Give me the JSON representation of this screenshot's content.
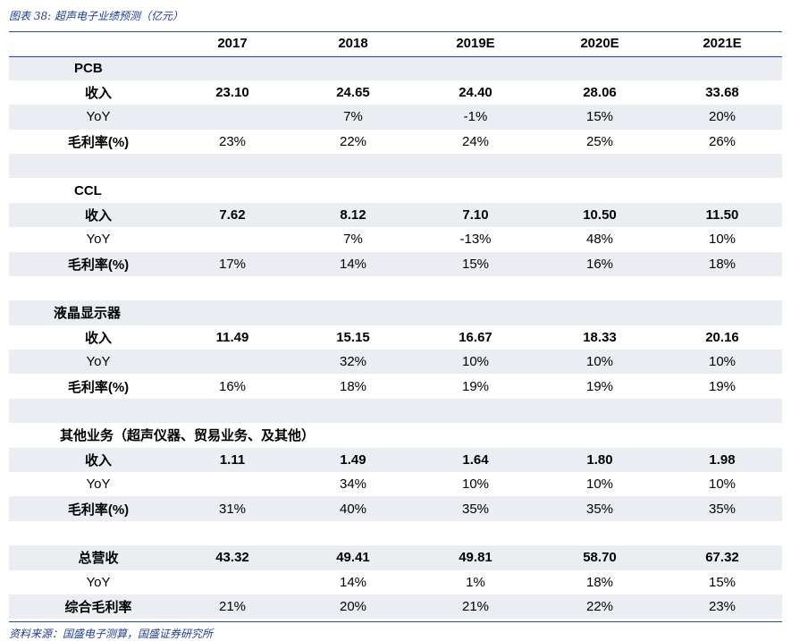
{
  "caption": "图表 38:  超声电子业绩预测（亿元）",
  "source": "资料来源：国盛电子测算，国盛证券研究所",
  "header": [
    "2017",
    "2018",
    "2019E",
    "2020E",
    "2021E"
  ],
  "rows": [
    {
      "type": "section",
      "label": "PCB",
      "shaded": true,
      "indent": 73
    },
    {
      "type": "data",
      "label": "收入",
      "bold": true,
      "values": [
        "23.10",
        "24.65",
        "24.40",
        "28.06",
        "33.68"
      ],
      "shaded": false
    },
    {
      "type": "data",
      "label": "YoY",
      "bold": false,
      "values": [
        "",
        "7%",
        "-1%",
        "15%",
        "20%"
      ],
      "shaded": true
    },
    {
      "type": "data",
      "label": "毛利率(%)",
      "label_bold": true,
      "bold": false,
      "values": [
        "23%",
        "22%",
        "24%",
        "25%",
        "26%"
      ],
      "shaded": false
    },
    {
      "type": "blank",
      "shaded": true
    },
    {
      "type": "section",
      "label": "CCL",
      "shaded": false,
      "indent": 73
    },
    {
      "type": "data",
      "label": "收入",
      "bold": true,
      "values": [
        "7.62",
        "8.12",
        "7.10",
        "10.50",
        "11.50"
      ],
      "shaded": true
    },
    {
      "type": "data",
      "label": "YoY",
      "bold": false,
      "values": [
        "",
        "7%",
        "-13%",
        "48%",
        "10%"
      ],
      "shaded": false
    },
    {
      "type": "data",
      "label": "毛利率(%)",
      "label_bold": true,
      "bold": false,
      "values": [
        "17%",
        "14%",
        "15%",
        "16%",
        "18%"
      ],
      "shaded": true
    },
    {
      "type": "blank",
      "shaded": false
    },
    {
      "type": "section",
      "label": "液晶显示器",
      "shaded": true,
      "indent": 50
    },
    {
      "type": "data",
      "label": "收入",
      "bold": true,
      "values": [
        "11.49",
        "15.15",
        "16.67",
        "18.33",
        "20.16"
      ],
      "shaded": false
    },
    {
      "type": "data",
      "label": "YoY",
      "bold": false,
      "values": [
        "",
        "32%",
        "10%",
        "10%",
        "10%"
      ],
      "shaded": true
    },
    {
      "type": "data",
      "label": "毛利率(%)",
      "label_bold": true,
      "bold": false,
      "values": [
        "16%",
        "18%",
        "19%",
        "19%",
        "19%"
      ],
      "shaded": false
    },
    {
      "type": "blank",
      "shaded": true
    },
    {
      "type": "section",
      "label": "其他业务（超声仪器、贸易业务、及其他）",
      "shaded": false,
      "indent": 57
    },
    {
      "type": "data",
      "label": "收入",
      "bold": true,
      "values": [
        "1.11",
        "1.49",
        "1.64",
        "1.80",
        "1.98"
      ],
      "shaded": true
    },
    {
      "type": "data",
      "label": "YoY",
      "bold": false,
      "values": [
        "",
        "34%",
        "10%",
        "10%",
        "10%"
      ],
      "shaded": false
    },
    {
      "type": "data",
      "label": "毛利率(%)",
      "label_bold": true,
      "bold": false,
      "values": [
        "31%",
        "40%",
        "35%",
        "35%",
        "35%"
      ],
      "shaded": true
    },
    {
      "type": "blank",
      "shaded": false
    },
    {
      "type": "data",
      "label": "总营收",
      "bold": true,
      "values": [
        "43.32",
        "49.41",
        "49.81",
        "58.70",
        "67.32"
      ],
      "shaded": true
    },
    {
      "type": "data",
      "label": "YoY",
      "bold": false,
      "values": [
        "",
        "14%",
        "1%",
        "18%",
        "15%"
      ],
      "shaded": false
    },
    {
      "type": "data",
      "label": "综合毛利率",
      "label_bold": true,
      "bold": false,
      "values": [
        "21%",
        "20%",
        "21%",
        "22%",
        "23%"
      ],
      "shaded": true
    }
  ]
}
